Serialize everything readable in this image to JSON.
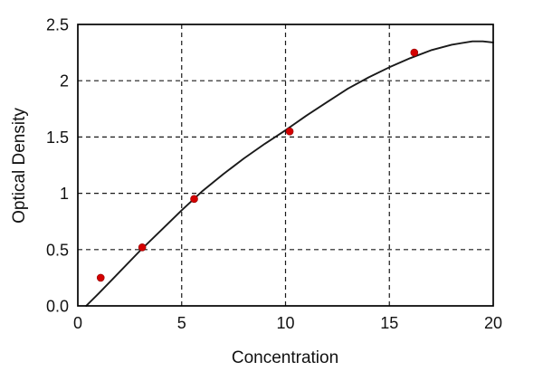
{
  "chart_data": {
    "type": "scatter",
    "title": "",
    "xlabel": "Concentration",
    "ylabel": "Optical Density",
    "xlim": [
      0,
      20
    ],
    "ylim": [
      0,
      2.5
    ],
    "x_ticks": [
      0,
      5,
      10,
      15,
      20
    ],
    "x_tick_labels": [
      "0",
      "5",
      "10",
      "15",
      "20"
    ],
    "y_ticks": [
      0,
      0.5,
      1,
      1.5,
      2,
      2.5
    ],
    "y_tick_labels": [
      "0.0",
      "0.5",
      "1",
      "1.5",
      "2",
      "2.5"
    ],
    "grid": true,
    "grid_style": "dashed",
    "legend_position": "none",
    "frame_color": "#000000",
    "grid_color": "#1a1a1a",
    "point_color": "#d40000",
    "curve_color": "#1a1a1a",
    "points": [
      {
        "x": 1.1,
        "y": 0.25
      },
      {
        "x": 3.1,
        "y": 0.52
      },
      {
        "x": 5.6,
        "y": 0.95
      },
      {
        "x": 10.2,
        "y": 1.55
      },
      {
        "x": 16.2,
        "y": 2.25
      }
    ],
    "curve": [
      {
        "x": 0.4,
        "y": 0.0
      },
      {
        "x": 1,
        "y": 0.11
      },
      {
        "x": 2,
        "y": 0.3
      },
      {
        "x": 3,
        "y": 0.49
      },
      {
        "x": 4,
        "y": 0.67
      },
      {
        "x": 5,
        "y": 0.85
      },
      {
        "x": 6,
        "y": 1.02
      },
      {
        "x": 7,
        "y": 1.17
      },
      {
        "x": 8,
        "y": 1.31
      },
      {
        "x": 9,
        "y": 1.44
      },
      {
        "x": 10,
        "y": 1.56
      },
      {
        "x": 11,
        "y": 1.69
      },
      {
        "x": 12,
        "y": 1.81
      },
      {
        "x": 13,
        "y": 1.93
      },
      {
        "x": 14,
        "y": 2.03
      },
      {
        "x": 15,
        "y": 2.12
      },
      {
        "x": 16,
        "y": 2.2
      },
      {
        "x": 17,
        "y": 2.27
      },
      {
        "x": 18,
        "y": 2.32
      },
      {
        "x": 19,
        "y": 2.35
      },
      {
        "x": 19.5,
        "y": 2.35
      },
      {
        "x": 20,
        "y": 2.34
      }
    ]
  }
}
